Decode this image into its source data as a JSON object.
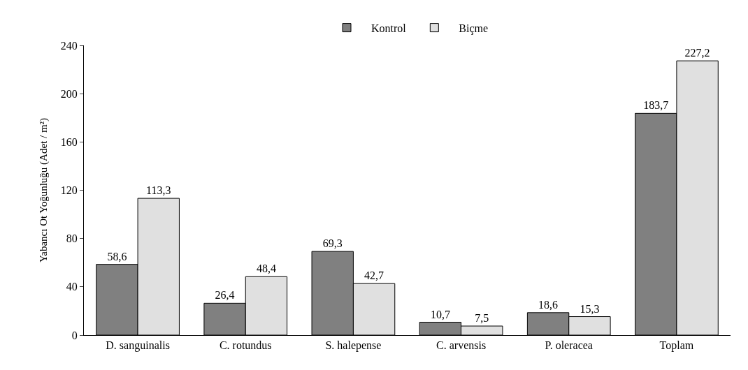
{
  "chart_data": {
    "type": "bar",
    "ylabel": "Yabancı Ot Yoğunluğu (Adet / m²)",
    "categories": [
      "D. sanguinalis",
      "C. rotundus",
      "S. halepense",
      "C. arvensis",
      "P. oleracea",
      "Toplam"
    ],
    "series": [
      {
        "name": "Kontrol",
        "color": "#808080",
        "values": [
          58.6,
          26.4,
          69.3,
          10.7,
          18.6,
          183.7
        ],
        "value_labels": [
          "58,6",
          "26,4",
          "69,3",
          "10,7",
          "18,6",
          "183,7"
        ]
      },
      {
        "name": "Biçme",
        "color": "#e0e0e0",
        "values": [
          113.3,
          48.4,
          42.7,
          7.5,
          15.3,
          227.2
        ],
        "value_labels": [
          "113,3",
          "48,4",
          "42,7",
          "7,5",
          "15,3",
          "227,2"
        ]
      }
    ],
    "ylim": [
      0,
      240
    ],
    "yticks": [
      0,
      40,
      80,
      120,
      160,
      200,
      240
    ],
    "legend": "top"
  }
}
